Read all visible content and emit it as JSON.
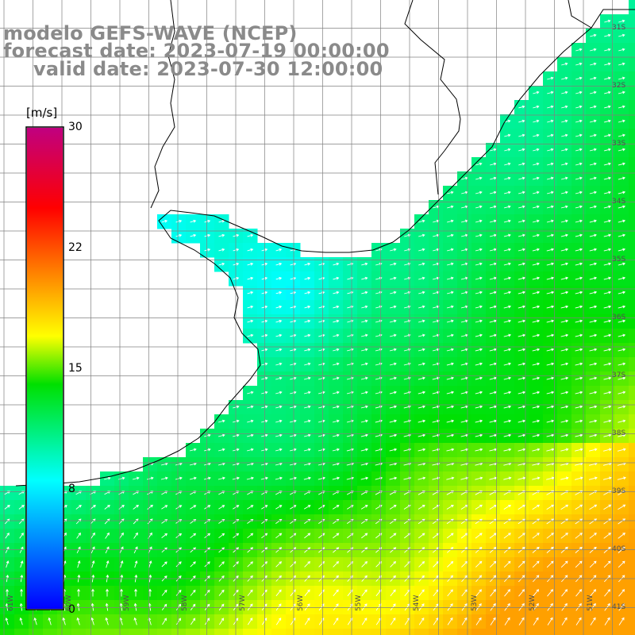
{
  "title": {
    "line1": "modelo GEFS-WAVE (NCEP)",
    "line2": "forecast date: 2023-07-19 00:00:00",
    "line3": "valid date: 2023-07-30 12:00:00"
  },
  "colorbar": {
    "unit": "[m/s]",
    "min": 0,
    "max": 30,
    "ticks": [
      "30",
      "22",
      "15",
      "8",
      "0"
    ],
    "tick_values": [
      30,
      22,
      15,
      8,
      0
    ],
    "colors": [
      "#0000ff",
      "#00ffff",
      "#00e000",
      "#ffff00",
      "#ff8000",
      "#ff0000",
      "#c00080"
    ]
  },
  "map": {
    "lat_labels": [
      "31S",
      "32S",
      "33S",
      "34S",
      "35S",
      "36S",
      "37S",
      "38S",
      "39S",
      "40S",
      "41S"
    ],
    "lat_values": [
      -31,
      -32,
      -33,
      -34,
      -35,
      -36,
      -37,
      -38,
      -39,
      -40,
      -41
    ],
    "lon_labels": [
      "61W",
      "60W",
      "59W",
      "58W",
      "57W",
      "56W",
      "55W",
      "54W",
      "53W",
      "52W",
      "51W"
    ],
    "lon_values": [
      -61,
      -60,
      -59,
      -58,
      -57,
      -56,
      -55,
      -54,
      -53,
      -52,
      -51
    ],
    "land_color": "#ffffff",
    "grid_color": "#808080",
    "arrow_color": "#ffffff"
  }
}
